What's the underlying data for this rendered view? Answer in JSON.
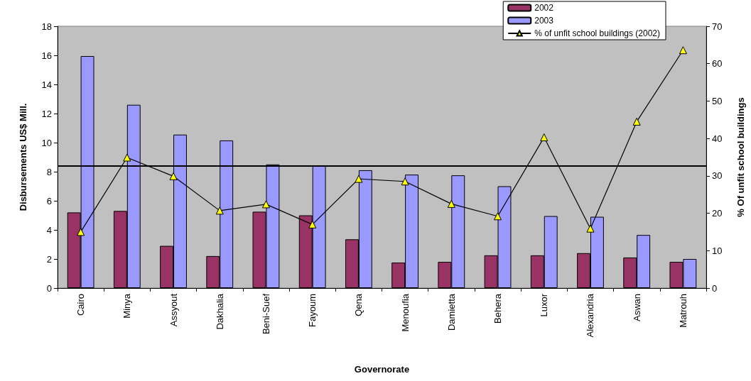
{
  "chart_data": {
    "type": "bar",
    "xlabel": "Governorate",
    "ylabel": "Disbursements US$ Mill.",
    "y2label": "% Of unfit school buildings",
    "categories": [
      "Cairo",
      "Minya",
      "Assyout",
      "Dakhalia",
      "Beni-Suef",
      "Fayoum",
      "Qena",
      "Menoufia",
      "Damietta",
      "Behera",
      "Luxor",
      "Alexandria",
      "Aswan",
      "Matrouh"
    ],
    "series": [
      {
        "name": "2002",
        "color": "#993366",
        "values": [
          5.2,
          5.3,
          2.9,
          2.2,
          5.25,
          5.0,
          3.35,
          1.75,
          1.8,
          2.25,
          2.25,
          2.4,
          2.1,
          1.8
        ]
      },
      {
        "name": "2003",
        "color": "#9999ff",
        "values": [
          15.95,
          12.6,
          10.55,
          10.15,
          8.5,
          8.4,
          8.1,
          7.8,
          7.75,
          7.0,
          4.95,
          4.9,
          3.65,
          2.0
        ]
      },
      {
        "name": "% of unfit school buildings (2002)",
        "type": "line",
        "axis": "y2",
        "color": "#000000",
        "marker": "triangle",
        "values": [
          15.0,
          34.9,
          29.9,
          20.7,
          22.4,
          17.0,
          29.2,
          28.5,
          22.5,
          19.2,
          40.3,
          15.9,
          44.5,
          63.6
        ]
      }
    ],
    "ylim": [
      0,
      18
    ],
    "yticks": [
      0,
      2,
      4,
      6,
      8,
      10,
      12,
      14,
      16,
      18
    ],
    "y2lim": [
      0,
      70
    ],
    "y2ticks": [
      0,
      10,
      20,
      30,
      40,
      50,
      60,
      70
    ],
    "ref_lines": [
      {
        "axis": "y",
        "value": 8.4,
        "color": "#000000"
      }
    ],
    "grid": false,
    "legend": "top right"
  }
}
